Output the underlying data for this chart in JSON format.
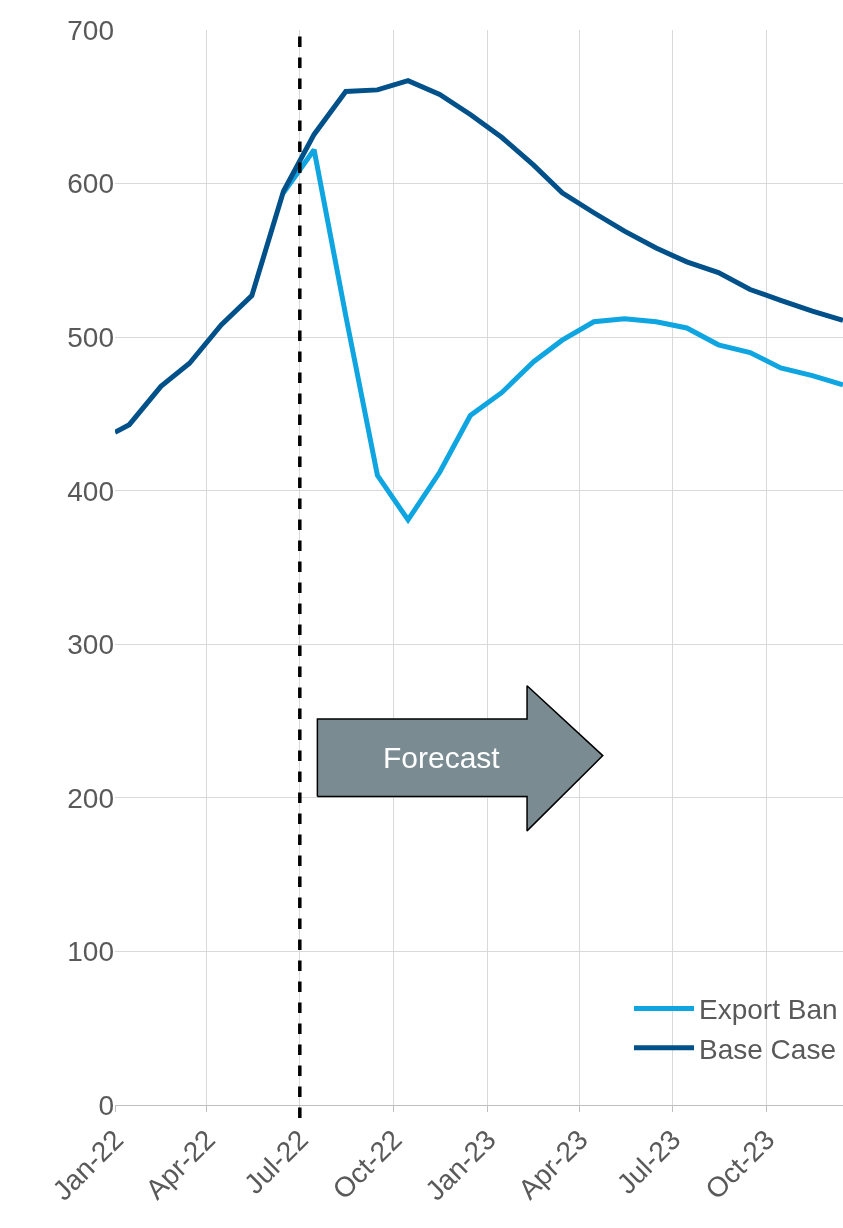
{
  "chart_data": {
    "type": "line",
    "xlim": [
      "2022-01-01",
      "2023-12-15"
    ],
    "xticks": [
      {
        "value": "2022-01-01",
        "label": "Jan-22"
      },
      {
        "value": "2022-04-01",
        "label": "Apr-22"
      },
      {
        "value": "2022-07-01",
        "label": "Jul-22"
      },
      {
        "value": "2022-10-01",
        "label": "Oct-22"
      },
      {
        "value": "2023-01-01",
        "label": "Jan-23"
      },
      {
        "value": "2023-04-01",
        "label": "Apr-23"
      },
      {
        "value": "2023-07-01",
        "label": "Jul-23"
      },
      {
        "value": "2023-10-01",
        "label": "Oct-23"
      }
    ],
    "ylim": [
      0,
      700
    ],
    "yticks": [
      0,
      100,
      200,
      300,
      400,
      500,
      600,
      700
    ],
    "grid": true,
    "legend": "bottom right",
    "series": [
      {
        "name": "Export Ban",
        "color": "#0ea5e0",
        "x": [
          "2022-06-15",
          "2022-07-15",
          "2022-08-15",
          "2022-09-15",
          "2022-10-15",
          "2022-11-15",
          "2022-12-15",
          "2023-01-15",
          "2023-02-15",
          "2023-03-15",
          "2023-04-15",
          "2023-05-15",
          "2023-06-15",
          "2023-07-15",
          "2023-08-15",
          "2023-09-15",
          "2023-10-15",
          "2023-11-15",
          "2023-12-15"
        ],
        "values": [
          594,
          622,
          514,
          410,
          381,
          412,
          449,
          464,
          484,
          498,
          510,
          512,
          510,
          506,
          495,
          490,
          480,
          475,
          469
        ]
      },
      {
        "name": "Base Case",
        "color": "#00508a",
        "x": [
          "2022-01-01",
          "2022-01-15",
          "2022-02-15",
          "2022-03-15",
          "2022-04-15",
          "2022-05-15",
          "2022-06-15",
          "2022-07-15",
          "2022-08-15",
          "2022-09-15",
          "2022-10-15",
          "2022-11-15",
          "2022-12-15",
          "2023-01-15",
          "2023-02-15",
          "2023-03-15",
          "2023-04-15",
          "2023-05-15",
          "2023-06-15",
          "2023-07-15",
          "2023-08-15",
          "2023-09-15",
          "2023-10-15",
          "2023-11-15",
          "2023-12-15"
        ],
        "values": [
          438,
          443,
          468,
          483,
          508,
          527,
          595,
          632,
          660,
          661,
          667,
          658,
          645,
          630,
          612,
          594,
          581,
          569,
          558,
          549,
          542,
          531,
          524,
          517,
          511
        ]
      }
    ],
    "ref_lines": [
      {
        "axis": "x",
        "value": "2022-07-01",
        "color": "#000000",
        "line_style": "dashed"
      }
    ],
    "annotations": [
      "Forecast"
    ]
  }
}
